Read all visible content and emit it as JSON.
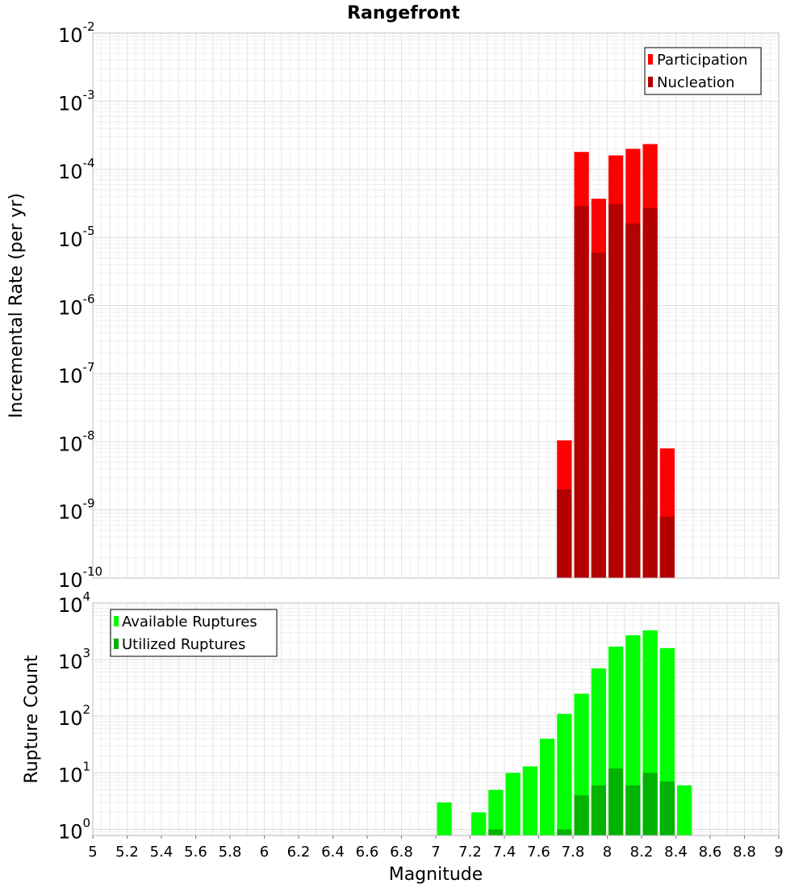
{
  "chart_data": [
    {
      "type": "bar",
      "title": "Rangefront",
      "xlabel": "Magnitude",
      "ylabel": "Incremental Rate (per yr)",
      "xlim": [
        5,
        9
      ],
      "ylim": [
        1e-10,
        0.01
      ],
      "yscale": "log",
      "y_tick_labels": [
        {
          "base": "10",
          "exp": "-2"
        },
        {
          "base": "10",
          "exp": "-3"
        },
        {
          "base": "10",
          "exp": "-4"
        },
        {
          "base": "10",
          "exp": "-5"
        },
        {
          "base": "10",
          "exp": "-6"
        },
        {
          "base": "10",
          "exp": "-7"
        },
        {
          "base": "10",
          "exp": "-8"
        },
        {
          "base": "10",
          "exp": "-9"
        },
        {
          "base": "10",
          "exp": "-10"
        }
      ],
      "grid": true,
      "legend_position": "top-right",
      "bin_width": 0.1,
      "series": [
        {
          "name": "Participation",
          "color": "#ff0000",
          "x": [
            7.75,
            7.85,
            7.95,
            8.05,
            8.15,
            8.25,
            8.35
          ],
          "values": [
            1.05e-08,
            0.00018,
            3.7e-05,
            0.00016,
            0.0002,
            0.000235,
            8e-09
          ]
        },
        {
          "name": "Nucleation",
          "color": "#b30000",
          "x": [
            7.75,
            7.85,
            7.95,
            8.05,
            8.15,
            8.25,
            8.35
          ],
          "values": [
            2e-09,
            2.9e-05,
            6e-06,
            3.1e-05,
            1.6e-05,
            2.7e-05,
            8e-10
          ]
        }
      ]
    },
    {
      "type": "bar",
      "title": "",
      "xlabel": "Magnitude",
      "ylabel": "Rupture Count",
      "xlim": [
        5,
        9
      ],
      "ylim": [
        0.78,
        10000
      ],
      "yscale": "log",
      "y_tick_labels": [
        {
          "base": "10",
          "exp": "4"
        },
        {
          "base": "10",
          "exp": "3"
        },
        {
          "base": "10",
          "exp": "2"
        },
        {
          "base": "10",
          "exp": "1"
        },
        {
          "base": "10",
          "exp": "0"
        }
      ],
      "x_tick_labels": [
        "5",
        "5.2",
        "5.4",
        "5.6",
        "5.8",
        "6",
        "6.2",
        "6.4",
        "6.6",
        "6.8",
        "7",
        "7.2",
        "7.4",
        "7.6",
        "7.8",
        "8",
        "8.2",
        "8.4",
        "8.6",
        "8.8",
        "9"
      ],
      "grid": true,
      "legend_position": "top-left",
      "bin_width": 0.1,
      "series": [
        {
          "name": "Available Ruptures",
          "color": "#00ff00",
          "x": [
            7.05,
            7.25,
            7.35,
            7.45,
            7.55,
            7.65,
            7.75,
            7.85,
            7.95,
            8.05,
            8.15,
            8.25,
            8.35,
            8.45
          ],
          "values": [
            3,
            2,
            5,
            10,
            13,
            40,
            110,
            250,
            700,
            1700,
            2700,
            3300,
            1600,
            6
          ]
        },
        {
          "name": "Utilized Ruptures",
          "color": "#00b300",
          "x": [
            7.35,
            7.75,
            7.85,
            7.95,
            8.05,
            8.15,
            8.25,
            8.35
          ],
          "values": [
            1,
            1,
            4,
            6,
            12,
            6,
            10,
            7
          ]
        }
      ]
    }
  ]
}
